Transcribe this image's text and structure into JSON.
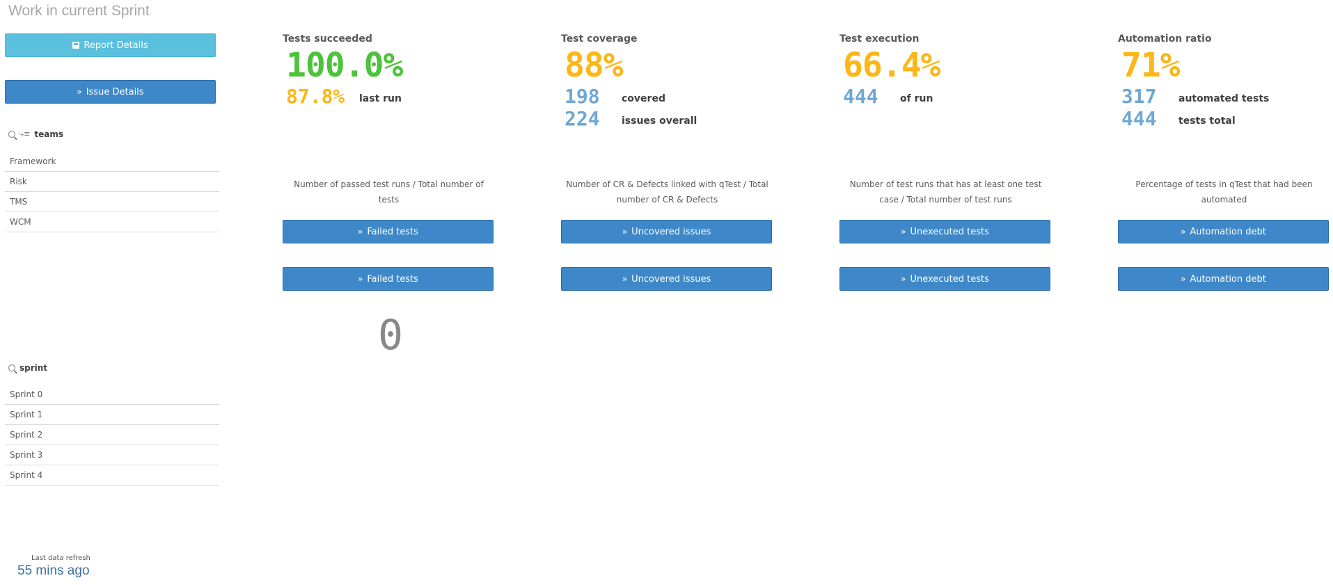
{
  "page": {
    "title": "Work in current Sprint"
  },
  "nav": {
    "report_details": "Report Details",
    "issue_details": "Issue Details"
  },
  "teams": {
    "label": "teams",
    "items": [
      "Framework",
      "Risk",
      "TMS",
      "WCM"
    ]
  },
  "sprint": {
    "label": "sprint",
    "items": [
      "Sprint 0",
      "Sprint 1",
      "Sprint 2",
      "Sprint 3",
      "Sprint 4"
    ]
  },
  "kpis": [
    {
      "title": "Tests succeeded",
      "main": "100.0%",
      "rows": [
        {
          "value": "87.8%",
          "label": "last run"
        }
      ],
      "description": "Number of passed test runs / Total number of tests",
      "button1": "Failed tests",
      "button2": "Failed tests"
    },
    {
      "title": "Test coverage",
      "main": "88%",
      "rows": [
        {
          "value": "198",
          "label": "covered"
        },
        {
          "value": "224",
          "label": "issues overall"
        }
      ],
      "description": "Number of CR & Defects linked with qTest / Total number of CR & Defects",
      "button1": "Uncovered issues",
      "button2": "Uncovered issues"
    },
    {
      "title": "Test execution",
      "main": "66.4%",
      "rows": [
        {
          "value": "444",
          "label": "of run"
        }
      ],
      "description": "Number of test runs that has at least one test case / Total number of test runs",
      "button1": "Unexecuted tests",
      "button2": "Unexecuted tests"
    },
    {
      "title": "Automation ratio",
      "main": "71%",
      "rows": [
        {
          "value": "317",
          "label": "automated tests"
        },
        {
          "value": "444",
          "label": "tests total"
        }
      ],
      "description": "Percentage of tests in qTest that had been automated",
      "button1": "Automation debt",
      "button2": "Automation debt"
    }
  ],
  "zero_value": "0",
  "refresh": {
    "label": "Last data refresh",
    "value": "55 mins ago"
  },
  "colors": {
    "green": "#4cc33a",
    "amber": "#fbb717",
    "blue": "#6fa8d3",
    "button": "#3e88c9",
    "button_light": "#5bc0de"
  }
}
